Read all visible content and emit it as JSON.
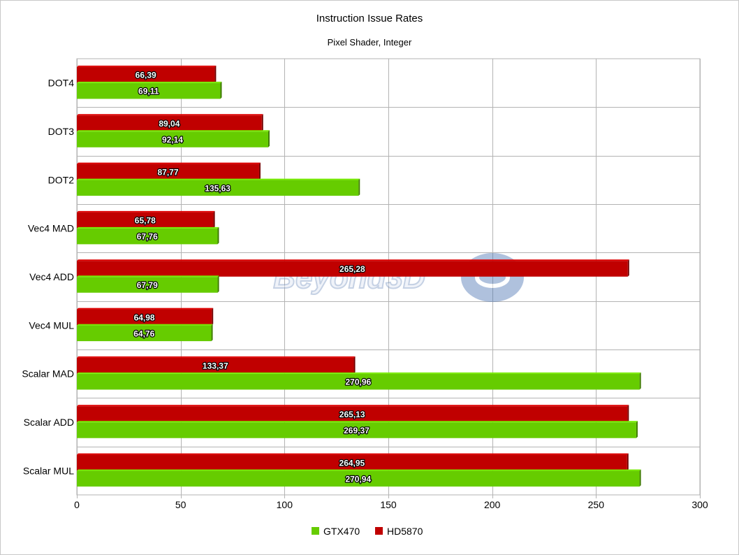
{
  "chart_data": {
    "type": "bar",
    "orientation": "horizontal",
    "title": "Instruction Issue Rates",
    "subtitle": "Pixel Shader, Integer",
    "categories": [
      "DOT4",
      "DOT3",
      "DOT2",
      "Vec4 MAD",
      "Vec4 ADD",
      "Vec4 MUL",
      "Scalar MAD",
      "Scalar ADD",
      "Scalar MUL"
    ],
    "series": [
      {
        "name": "HD5870",
        "color": "#c00000",
        "values": [
          66.39,
          89.04,
          87.77,
          65.78,
          265.28,
          64.98,
          133.37,
          265.13,
          264.95
        ],
        "labels": [
          "66,39",
          "89,04",
          "87,77",
          "65,78",
          "265,28",
          "64,98",
          "133,37",
          "265,13",
          "264,95"
        ]
      },
      {
        "name": "GTX470",
        "color": "#66cc00",
        "values": [
          69.11,
          92.14,
          135.63,
          67.76,
          67.79,
          64.76,
          270.96,
          269.37,
          270.94
        ],
        "labels": [
          "69,11",
          "92,14",
          "135,63",
          "67,76",
          "67,79",
          "64,76",
          "270,96",
          "269,37",
          "270,94"
        ]
      }
    ],
    "xlim": [
      0,
      300
    ],
    "xticks": [
      0,
      50,
      100,
      150,
      200,
      250,
      300
    ],
    "xlabel": "",
    "ylabel": "",
    "grid": true,
    "legend_position": "bottom",
    "legend_order": [
      "GTX470",
      "HD5870"
    ],
    "watermark": "Beyond3D"
  }
}
